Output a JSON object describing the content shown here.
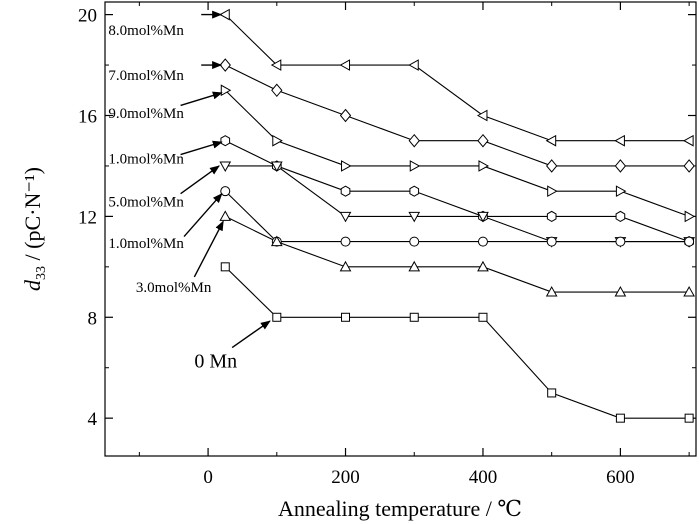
{
  "chart_data": {
    "type": "line",
    "xlabel": "Annealing temperature / ℃",
    "ylabel_main": "d",
    "ylabel_sub": "33",
    "ylabel_unit": " / (pC·N⁻¹)",
    "xlim": [
      -150,
      710
    ],
    "ylim": [
      2.5,
      20.5
    ],
    "x_ticks": [
      0,
      200,
      400,
      600
    ],
    "y_ticks": [
      4,
      8,
      12,
      16,
      20
    ],
    "x_minor_ticks": [
      -100,
      100,
      300,
      500,
      700
    ],
    "y_minor_ticks": [
      6,
      10,
      14,
      18
    ],
    "x": [
      25,
      100,
      200,
      300,
      400,
      500,
      600,
      700
    ],
    "series": [
      {
        "marker": "triangle-left",
        "values": [
          20,
          18,
          18,
          18,
          16,
          15,
          15,
          15
        ]
      },
      {
        "marker": "diamond",
        "values": [
          18,
          17,
          16,
          15,
          15,
          14,
          14,
          14
        ]
      },
      {
        "marker": "triangle-right",
        "values": [
          17,
          15,
          14,
          14,
          14,
          13,
          13,
          12
        ]
      },
      {
        "marker": "hexagon",
        "values": [
          15,
          14,
          13,
          13,
          12,
          12,
          12,
          11
        ]
      },
      {
        "marker": "triangle-down",
        "values": [
          14,
          14,
          12,
          12,
          12,
          11,
          11,
          11
        ]
      },
      {
        "marker": "circle",
        "values": [
          13,
          11,
          11,
          11,
          11,
          11,
          11,
          11
        ]
      },
      {
        "marker": "triangle-up",
        "values": [
          12,
          11,
          10,
          10,
          10,
          9,
          9,
          9
        ]
      },
      {
        "marker": "square",
        "values": [
          10,
          8,
          8,
          8,
          8,
          5,
          4,
          4
        ]
      }
    ],
    "annotations": [
      {
        "text": "8.0mol%Mn",
        "text_at": [
          -145,
          19.2
        ],
        "arrow_from": [
          -10,
          20.0
        ],
        "arrow_to": [
          19,
          20.0
        ],
        "size": "small"
      },
      {
        "text": "7.0mol%Mn",
        "text_at": [
          -145,
          17.4
        ],
        "arrow_from": [
          -10,
          18.0
        ],
        "arrow_to": [
          19,
          18.0
        ],
        "size": "small"
      },
      {
        "text": "9.0mol%Mn",
        "text_at": [
          -145,
          15.9
        ],
        "arrow_from": [
          -40,
          16.4
        ],
        "arrow_to": [
          20,
          16.9
        ],
        "size": "small"
      },
      {
        "text": "1.0mol%Mn",
        "text_at": [
          -145,
          14.1
        ],
        "arrow_from": [
          -40,
          14.45
        ],
        "arrow_to": [
          20,
          14.95
        ],
        "size": "small"
      },
      {
        "text": "5.0mol%Mn",
        "text_at": [
          -145,
          12.4
        ],
        "arrow_from": [
          -40,
          12.9
        ],
        "arrow_to": [
          16,
          14.0
        ],
        "size": "small"
      },
      {
        "text": "1.0mol%Mn",
        "text_at": [
          -145,
          10.75
        ],
        "arrow_from": [
          -35,
          11.2
        ],
        "arrow_to": [
          20,
          12.9
        ],
        "size": "small"
      },
      {
        "text": "3.0mol%Mn",
        "text_at": [
          -105,
          9.0
        ],
        "arrow_from": [
          -20,
          9.6
        ],
        "arrow_to": [
          22,
          11.8
        ],
        "size": "small"
      },
      {
        "text": "0 Mn",
        "text_at": [
          -20,
          6.0
        ],
        "arrow_from": [
          35,
          6.8
        ],
        "arrow_to": [
          90,
          7.85
        ],
        "size": "large"
      }
    ]
  }
}
